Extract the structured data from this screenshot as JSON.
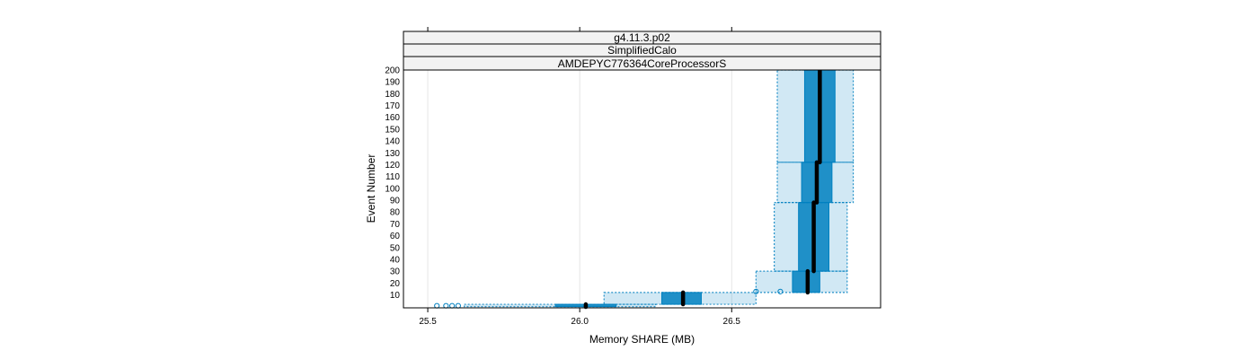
{
  "chart_data": {
    "type": "box",
    "strips": [
      "g4.11.3.p02",
      "SimplifiedCalo",
      "AMDEPYC776364CoreProcessorS"
    ],
    "xlabel": "Memory SHARE (MB)",
    "ylabel": "Event Number",
    "xlim": [
      25.42,
      26.99
    ],
    "ylim": [
      -1,
      200
    ],
    "xticks": [
      "25.5",
      "26.0",
      "26.5"
    ],
    "yticks": [
      "10",
      "20",
      "30",
      "40",
      "50",
      "60",
      "70",
      "80",
      "90",
      "100",
      "110",
      "120",
      "130",
      "140",
      "150",
      "160",
      "170",
      "180",
      "190",
      "200"
    ],
    "grid": true,
    "box_color": "#0080c0",
    "median_color": "#000000",
    "boxes": [
      {
        "y_from": 0,
        "y_to": 2,
        "whisker_low": 25.62,
        "q1": 25.92,
        "median": 26.02,
        "q3": 26.12,
        "whisker_high": 26.25,
        "outliers": [
          25.53,
          25.56,
          25.58,
          25.6
        ]
      },
      {
        "y_from": 2,
        "y_to": 12,
        "whisker_low": 26.08,
        "q1": 26.27,
        "median": 26.34,
        "q3": 26.4,
        "whisker_high": 26.58
      },
      {
        "y_from": 12,
        "y_to": 30,
        "whisker_low": 26.58,
        "q1": 26.7,
        "median": 26.75,
        "q3": 26.79,
        "whisker_high": 26.88,
        "outliers": [
          26.58,
          26.66
        ]
      },
      {
        "y_from": 30,
        "y_to": 88,
        "whisker_low": 26.64,
        "q1": 26.72,
        "median": 26.77,
        "q3": 26.82,
        "whisker_high": 26.88
      },
      {
        "y_from": 88,
        "y_to": 122,
        "whisker_low": 26.65,
        "q1": 26.73,
        "median": 26.78,
        "q3": 26.83,
        "whisker_high": 26.9
      },
      {
        "y_from": 122,
        "y_to": 200,
        "whisker_low": 26.65,
        "q1": 26.74,
        "median": 26.79,
        "q3": 26.84,
        "whisker_high": 26.9
      }
    ]
  }
}
